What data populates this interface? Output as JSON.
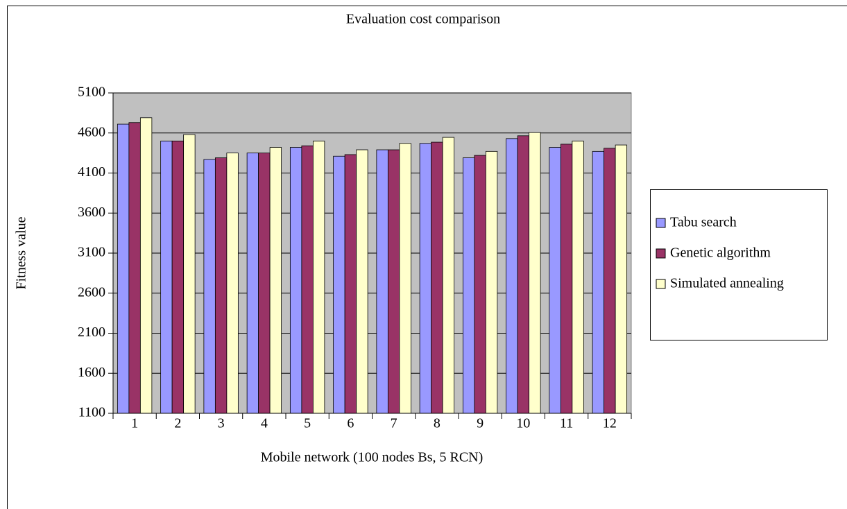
{
  "chart_data": {
    "type": "bar",
    "title": "Evaluation cost comparison",
    "x_label": "Mobile network (100 nodes Bs, 5 RCN)",
    "y_label": "Fitness value",
    "categories": [
      "1",
      "2",
      "3",
      "4",
      "5",
      "6",
      "7",
      "8",
      "9",
      "10",
      "11",
      "12"
    ],
    "series": [
      {
        "name": "Tabu search",
        "color": "#9999ff",
        "values": [
          4710,
          4500,
          4270,
          4350,
          4420,
          4310,
          4390,
          4470,
          4290,
          4530,
          4420,
          4370
        ]
      },
      {
        "name": "Genetic algorithm",
        "color": "#993366",
        "values": [
          4730,
          4500,
          4290,
          4350,
          4440,
          4330,
          4390,
          4485,
          4320,
          4565,
          4460,
          4410
        ]
      },
      {
        "name": "Simulated annealing",
        "color": "#ffffcc",
        "values": [
          4790,
          4580,
          4350,
          4420,
          4500,
          4390,
          4470,
          4545,
          4370,
          4605,
          4500,
          4450
        ]
      }
    ],
    "ylim": [
      1100,
      5100
    ],
    "yticks": [
      1100,
      1600,
      2100,
      2600,
      3100,
      3600,
      4100,
      4600,
      5100
    ],
    "grid": true,
    "legend": "right"
  }
}
